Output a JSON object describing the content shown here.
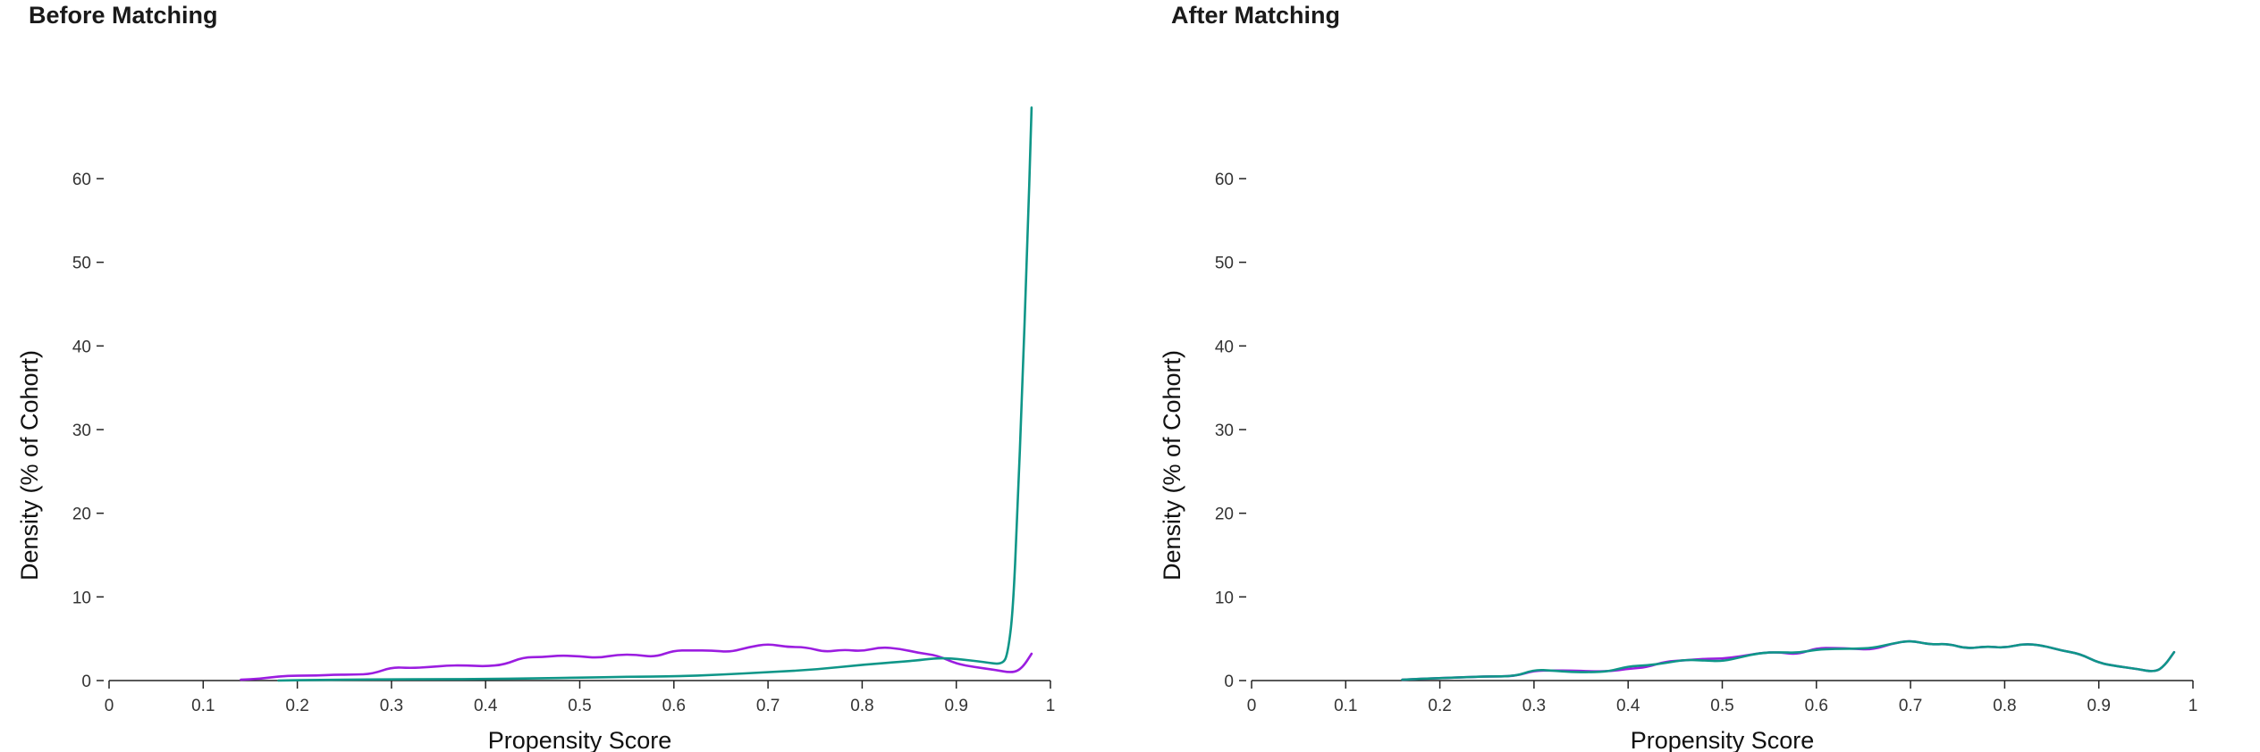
{
  "chart_data": [
    {
      "type": "line",
      "title": "Before Matching",
      "xlabel": "Propensity Score",
      "ylabel": "Density (% of Cohort)",
      "xlim": [
        0,
        1
      ],
      "ylim": [
        0,
        60
      ],
      "x_ticks": [
        "0",
        "0.1",
        "0.2",
        "0.3",
        "0.4",
        "0.5",
        "0.6",
        "0.7",
        "0.8",
        "0.9",
        "1"
      ],
      "y_ticks": [
        "0",
        "10",
        "20",
        "30",
        "40",
        "50",
        "60"
      ],
      "grid": false,
      "series": [
        {
          "color": "#9b1de0",
          "points": [
            [
              0.14,
              0.1
            ],
            [
              0.16,
              0.2
            ],
            [
              0.18,
              0.5
            ],
            [
              0.2,
              0.6
            ],
            [
              0.22,
              0.6
            ],
            [
              0.24,
              0.7
            ],
            [
              0.26,
              0.7
            ],
            [
              0.28,
              0.8
            ],
            [
              0.3,
              1.6
            ],
            [
              0.32,
              1.5
            ],
            [
              0.34,
              1.6
            ],
            [
              0.36,
              1.8
            ],
            [
              0.38,
              1.8
            ],
            [
              0.4,
              1.7
            ],
            [
              0.42,
              1.9
            ],
            [
              0.44,
              2.8
            ],
            [
              0.46,
              2.8
            ],
            [
              0.48,
              3.0
            ],
            [
              0.5,
              2.9
            ],
            [
              0.52,
              2.7
            ],
            [
              0.54,
              3.1
            ],
            [
              0.56,
              3.1
            ],
            [
              0.58,
              2.8
            ],
            [
              0.6,
              3.6
            ],
            [
              0.62,
              3.6
            ],
            [
              0.64,
              3.6
            ],
            [
              0.66,
              3.4
            ],
            [
              0.68,
              4.0
            ],
            [
              0.7,
              4.4
            ],
            [
              0.72,
              4.0
            ],
            [
              0.74,
              4.0
            ],
            [
              0.76,
              3.4
            ],
            [
              0.78,
              3.7
            ],
            [
              0.8,
              3.5
            ],
            [
              0.82,
              4.0
            ],
            [
              0.84,
              3.8
            ],
            [
              0.86,
              3.3
            ],
            [
              0.88,
              3.0
            ],
            [
              0.9,
              2.0
            ],
            [
              0.92,
              1.6
            ],
            [
              0.94,
              1.3
            ],
            [
              0.96,
              0.9
            ],
            [
              0.97,
              1.5
            ],
            [
              0.98,
              3.2
            ]
          ]
        },
        {
          "color": "#0f9688",
          "points": [
            [
              0.18,
              0.0
            ],
            [
              0.2,
              0.05
            ],
            [
              0.25,
              0.1
            ],
            [
              0.3,
              0.15
            ],
            [
              0.35,
              0.15
            ],
            [
              0.4,
              0.2
            ],
            [
              0.45,
              0.25
            ],
            [
              0.5,
              0.35
            ],
            [
              0.55,
              0.45
            ],
            [
              0.6,
              0.5
            ],
            [
              0.65,
              0.7
            ],
            [
              0.7,
              1.0
            ],
            [
              0.75,
              1.3
            ],
            [
              0.8,
              1.9
            ],
            [
              0.85,
              2.3
            ],
            [
              0.88,
              2.7
            ],
            [
              0.9,
              2.6
            ],
            [
              0.93,
              2.2
            ],
            [
              0.95,
              1.9
            ],
            [
              0.955,
              3.5
            ],
            [
              0.96,
              8.0
            ],
            [
              0.965,
              20.0
            ],
            [
              0.97,
              35.0
            ],
            [
              0.975,
              50.0
            ],
            [
              0.98,
              68.5
            ]
          ]
        }
      ]
    },
    {
      "type": "line",
      "title": "After Matching",
      "xlabel": "Propensity Score",
      "ylabel": "Density (% of Cohort)",
      "xlim": [
        0,
        1
      ],
      "ylim": [
        0,
        60
      ],
      "x_ticks": [
        "0",
        "0.1",
        "0.2",
        "0.3",
        "0.4",
        "0.5",
        "0.6",
        "0.7",
        "0.8",
        "0.9",
        "1"
      ],
      "y_ticks": [
        "0",
        "10",
        "20",
        "30",
        "40",
        "50",
        "60"
      ],
      "grid": false,
      "series": [
        {
          "color": "#9b1de0",
          "points": [
            [
              0.16,
              0.1
            ],
            [
              0.2,
              0.3
            ],
            [
              0.25,
              0.5
            ],
            [
              0.28,
              0.5
            ],
            [
              0.3,
              1.2
            ],
            [
              0.32,
              1.2
            ],
            [
              0.34,
              1.2
            ],
            [
              0.36,
              1.1
            ],
            [
              0.38,
              1.1
            ],
            [
              0.4,
              1.4
            ],
            [
              0.42,
              1.6
            ],
            [
              0.44,
              2.3
            ],
            [
              0.46,
              2.4
            ],
            [
              0.48,
              2.6
            ],
            [
              0.5,
              2.6
            ],
            [
              0.52,
              2.9
            ],
            [
              0.54,
              3.3
            ],
            [
              0.56,
              3.4
            ],
            [
              0.58,
              3.1
            ],
            [
              0.6,
              3.9
            ],
            [
              0.62,
              3.9
            ],
            [
              0.64,
              3.8
            ],
            [
              0.66,
              3.7
            ],
            [
              0.68,
              4.4
            ],
            [
              0.7,
              4.8
            ],
            [
              0.72,
              4.3
            ],
            [
              0.74,
              4.4
            ],
            [
              0.76,
              3.8
            ],
            [
              0.78,
              4.1
            ],
            [
              0.8,
              3.9
            ],
            [
              0.82,
              4.4
            ],
            [
              0.84,
              4.2
            ],
            [
              0.86,
              3.6
            ],
            [
              0.88,
              3.2
            ],
            [
              0.9,
              2.1
            ],
            [
              0.92,
              1.7
            ],
            [
              0.94,
              1.4
            ],
            [
              0.96,
              1.0
            ],
            [
              0.97,
              1.8
            ],
            [
              0.98,
              3.4
            ]
          ]
        },
        {
          "color": "#0f9688",
          "points": [
            [
              0.16,
              0.1
            ],
            [
              0.2,
              0.3
            ],
            [
              0.25,
              0.5
            ],
            [
              0.28,
              0.5
            ],
            [
              0.3,
              1.3
            ],
            [
              0.32,
              1.2
            ],
            [
              0.34,
              1.0
            ],
            [
              0.36,
              1.0
            ],
            [
              0.38,
              1.1
            ],
            [
              0.4,
              1.7
            ],
            [
              0.42,
              1.8
            ],
            [
              0.44,
              2.1
            ],
            [
              0.46,
              2.5
            ],
            [
              0.48,
              2.4
            ],
            [
              0.5,
              2.3
            ],
            [
              0.52,
              2.8
            ],
            [
              0.54,
              3.3
            ],
            [
              0.56,
              3.4
            ],
            [
              0.58,
              3.3
            ],
            [
              0.6,
              3.7
            ],
            [
              0.62,
              3.8
            ],
            [
              0.64,
              3.8
            ],
            [
              0.66,
              3.9
            ],
            [
              0.68,
              4.4
            ],
            [
              0.7,
              4.8
            ],
            [
              0.72,
              4.3
            ],
            [
              0.74,
              4.4
            ],
            [
              0.76,
              3.8
            ],
            [
              0.78,
              4.1
            ],
            [
              0.8,
              3.9
            ],
            [
              0.82,
              4.4
            ],
            [
              0.84,
              4.2
            ],
            [
              0.86,
              3.6
            ],
            [
              0.88,
              3.2
            ],
            [
              0.9,
              2.1
            ],
            [
              0.92,
              1.7
            ],
            [
              0.94,
              1.4
            ],
            [
              0.96,
              1.0
            ],
            [
              0.97,
              1.8
            ],
            [
              0.98,
              3.4
            ]
          ]
        }
      ]
    }
  ]
}
